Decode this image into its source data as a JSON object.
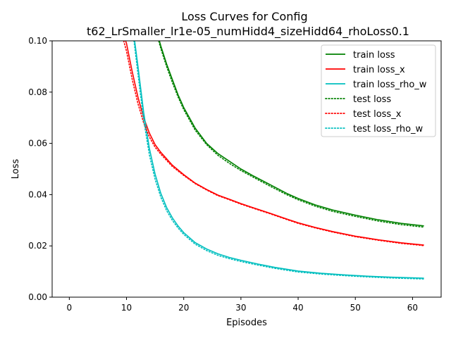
{
  "chart_data": {
    "type": "line",
    "title_line1": "Loss Curves for Config",
    "title_line2": "t62_LrSmaller_lr1e-05_numHidd4_sizeHidd64_rhoLoss0.1",
    "xlabel": "Episodes",
    "ylabel": "Loss",
    "xlim": [
      -3,
      65
    ],
    "ylim": [
      0,
      0.1
    ],
    "xticks": [
      0,
      10,
      20,
      30,
      40,
      50,
      60
    ],
    "yticks": [
      0.0,
      0.02,
      0.04,
      0.06,
      0.08,
      0.1
    ],
    "ytick_labels": [
      "0.00",
      "0.02",
      "0.04",
      "0.06",
      "0.08",
      "0.10"
    ],
    "grid": false,
    "legend_position": "top-right",
    "series": [
      {
        "name": "train loss",
        "color": "#008000",
        "style": "solid",
        "x": [
          15.5,
          16,
          17,
          18,
          19,
          20,
          22,
          24,
          26,
          28,
          30,
          32,
          35,
          38,
          40,
          43,
          46,
          50,
          54,
          58,
          62
        ],
        "y": [
          0.102,
          0.098,
          0.091,
          0.085,
          0.079,
          0.074,
          0.066,
          0.06,
          0.056,
          0.053,
          0.05,
          0.0475,
          0.044,
          0.0405,
          0.0385,
          0.036,
          0.034,
          0.032,
          0.0302,
          0.0288,
          0.0278
        ]
      },
      {
        "name": "train loss_x",
        "color": "#ff0000",
        "style": "solid",
        "x": [
          9.5,
          10,
          11,
          12,
          13,
          14,
          15,
          16,
          18,
          20,
          22,
          24,
          26,
          28,
          30,
          32,
          35,
          38,
          40,
          43,
          46,
          50,
          54,
          58,
          62
        ],
        "y": [
          0.102,
          0.099,
          0.088,
          0.078,
          0.07,
          0.064,
          0.0595,
          0.0565,
          0.0515,
          0.0478,
          0.0445,
          0.042,
          0.0398,
          0.0382,
          0.0365,
          0.035,
          0.0328,
          0.0305,
          0.029,
          0.0272,
          0.0256,
          0.0238,
          0.0224,
          0.0212,
          0.0203
        ]
      },
      {
        "name": "train loss_rho_w",
        "color": "#00bfbf",
        "style": "solid",
        "x": [
          11.3,
          12,
          13,
          14,
          15,
          16,
          17,
          18,
          19,
          20,
          22,
          24,
          26,
          28,
          30,
          33,
          36,
          40,
          44,
          48,
          52,
          56,
          62
        ],
        "y": [
          0.102,
          0.09,
          0.072,
          0.058,
          0.048,
          0.0405,
          0.035,
          0.031,
          0.0278,
          0.0252,
          0.0213,
          0.0188,
          0.0169,
          0.0155,
          0.0144,
          0.0129,
          0.0116,
          0.0102,
          0.0093,
          0.0087,
          0.0082,
          0.0078,
          0.0074
        ]
      },
      {
        "name": "test loss",
        "color": "#008000",
        "style": "dotted",
        "x": [
          15.5,
          16,
          17,
          18,
          19,
          20,
          22,
          24,
          26,
          28,
          30,
          32,
          35,
          38,
          40,
          43,
          46,
          50,
          54,
          58,
          62
        ],
        "y": [
          0.101,
          0.097,
          0.09,
          0.0838,
          0.0782,
          0.0732,
          0.0652,
          0.0595,
          0.0553,
          0.0522,
          0.0494,
          0.047,
          0.0434,
          0.04,
          0.038,
          0.0355,
          0.0335,
          0.0315,
          0.0297,
          0.0283,
          0.0273
        ]
      },
      {
        "name": "test loss_x",
        "color": "#ff0000",
        "style": "dotted",
        "x": [
          9.5,
          10,
          11,
          12,
          13,
          14,
          15,
          16,
          18,
          20,
          22,
          24,
          26,
          28,
          30,
          32,
          35,
          38,
          40,
          43,
          46,
          50,
          54,
          58,
          62
        ],
        "y": [
          0.1,
          0.096,
          0.085,
          0.0755,
          0.068,
          0.0625,
          0.0585,
          0.0558,
          0.051,
          0.0475,
          0.0443,
          0.0418,
          0.0396,
          0.038,
          0.0363,
          0.0348,
          0.0326,
          0.0303,
          0.0288,
          0.027,
          0.0254,
          0.0236,
          0.0222,
          0.021,
          0.0201
        ]
      },
      {
        "name": "test loss_rho_w",
        "color": "#00bfbf",
        "style": "dotted",
        "x": [
          11.3,
          12,
          13,
          14,
          15,
          16,
          17,
          18,
          19,
          20,
          22,
          24,
          26,
          28,
          30,
          33,
          36,
          40,
          44,
          48,
          52,
          56,
          62
        ],
        "y": [
          0.1,
          0.087,
          0.069,
          0.0555,
          0.046,
          0.039,
          0.0338,
          0.03,
          0.027,
          0.0245,
          0.0207,
          0.0182,
          0.0163,
          0.015,
          0.0139,
          0.0125,
          0.0112,
          0.0098,
          0.009,
          0.0084,
          0.0079,
          0.0075,
          0.0071
        ]
      }
    ]
  }
}
